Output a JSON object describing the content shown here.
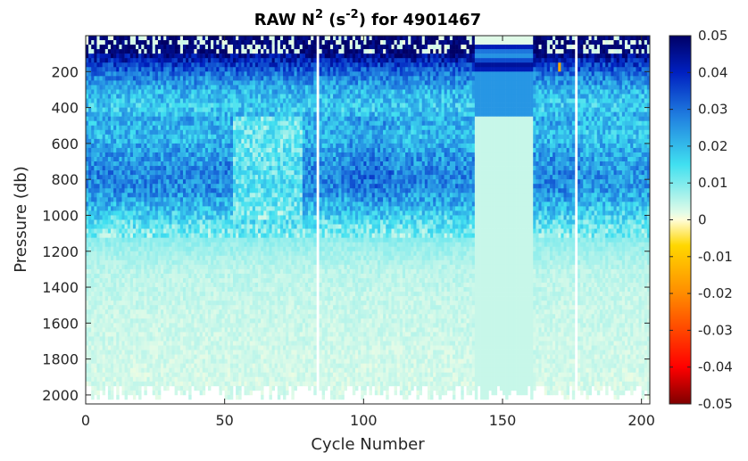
{
  "chart_data": {
    "type": "heatmap",
    "title": {
      "prefix": "RAW N",
      "sup1": "2",
      "middle": " (s",
      "sup2": "-2",
      "suffix": ") for 4901467"
    },
    "xlabel": "Cycle Number",
    "ylabel": "Pressure (db)",
    "xlim": [
      0,
      203
    ],
    "ylim": [
      2050,
      0
    ],
    "y_reversed": true,
    "grid": false,
    "x_ticks": [
      0,
      50,
      100,
      150,
      200
    ],
    "y_ticks": [
      200,
      400,
      600,
      800,
      1000,
      1200,
      1400,
      1600,
      1800,
      2000
    ],
    "colorbar": {
      "range": [
        -0.05,
        0.05
      ],
      "ticks": [
        0.05,
        0.04,
        0.03,
        0.02,
        0.01,
        0,
        -0.01,
        -0.02,
        -0.03,
        -0.04,
        -0.05
      ],
      "colormap": [
        "#7f0000",
        "#ff0000",
        "#ff8c00",
        "#ffd700",
        "#fffdd8",
        "#e0fbe8",
        "#40e0f0",
        "#2080e0",
        "#0020c0",
        "#000066"
      ],
      "placement": "right"
    },
    "depth_profile": {
      "pressure": [
        0,
        100,
        200,
        300,
        400,
        450,
        550,
        650,
        750,
        850,
        950,
        1050,
        1150,
        1300,
        1500,
        1700,
        1900,
        2000
      ],
      "n2": [
        0.04,
        0.045,
        0.03,
        0.021,
        0.017,
        0.022,
        0.02,
        0.024,
        0.027,
        0.026,
        0.02,
        0.012,
        0.008,
        0.005,
        0.004,
        0.0035,
        0.003,
        0.003
      ]
    },
    "missing_cycles": [
      83,
      176
    ],
    "uniform_cycle_range": [
      140,
      160
    ]
  }
}
